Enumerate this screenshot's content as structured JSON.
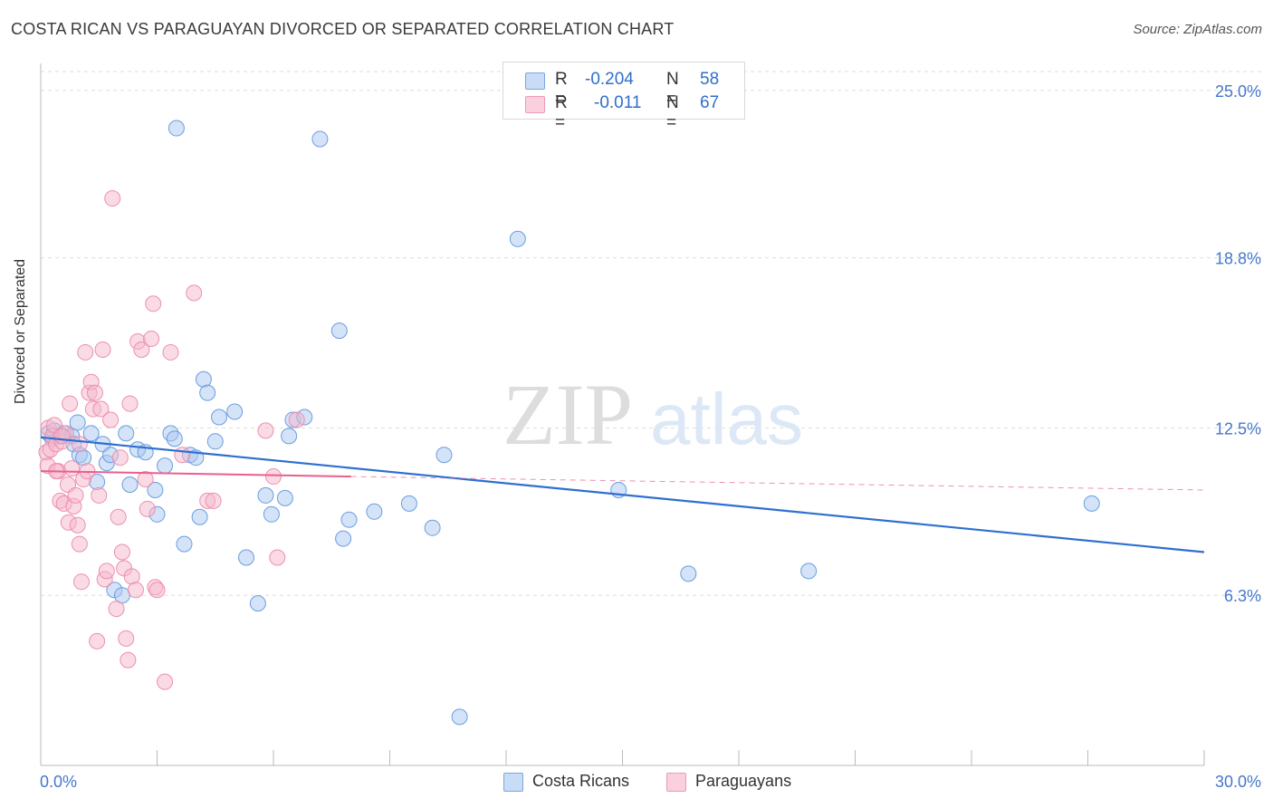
{
  "title": "COSTA RICAN VS PARAGUAYAN DIVORCED OR SEPARATED CORRELATION CHART",
  "source": "Source: ZipAtlas.com",
  "watermark": {
    "zip": "ZIP",
    "atlas": "atlas"
  },
  "legend": {
    "r_label": "R =",
    "n_label": "N =",
    "entries": [
      {
        "r": "-0.204",
        "n": "58",
        "color": "#a9c8f0"
      },
      {
        "r": "-0.011",
        "n": "67",
        "color": "#f5b8cc"
      }
    ]
  },
  "bottom_legend": [
    "Costa Ricans",
    "Paraguayans"
  ],
  "colors": {
    "blue_fill": "#a9c8f0",
    "blue_stroke": "#6a9ee0",
    "blue_line": "#2f6fd0",
    "pink_fill": "#f5b8cc",
    "pink_stroke": "#ec8fae",
    "pink_line": "#e8608e",
    "axis_label": "#4477cc",
    "grid": "#dddddd"
  },
  "chart_data": {
    "type": "scatter",
    "title": "COSTA RICAN VS PARAGUAYAN DIVORCED OR SEPARATED CORRELATION CHART",
    "xlabel": "",
    "ylabel": "Divorced or Separated",
    "xlim": [
      0,
      30
    ],
    "ylim": [
      0,
      26
    ],
    "x_tick_labels": [
      "0.0%",
      "30.0%"
    ],
    "y_ticks": [
      6.3,
      12.5,
      18.8,
      25.0
    ],
    "y_tick_labels": [
      "6.3%",
      "12.5%",
      "18.8%",
      "25.0%"
    ],
    "grid": true,
    "legend_position": "top-center",
    "series": [
      {
        "name": "Costa Ricans",
        "r": -0.204,
        "n": 58,
        "trend": {
          "x": [
            0,
            30
          ],
          "y": [
            12.15,
            7.9
          ]
        },
        "points": [
          [
            0.2,
            12.3
          ],
          [
            0.35,
            12.4
          ],
          [
            0.5,
            12.2
          ],
          [
            0.6,
            12.3
          ],
          [
            0.8,
            12.2
          ],
          [
            0.85,
            11.9
          ],
          [
            0.95,
            12.7
          ],
          [
            1.0,
            11.5
          ],
          [
            1.1,
            11.4
          ],
          [
            1.3,
            12.3
          ],
          [
            1.45,
            10.5
          ],
          [
            1.6,
            11.9
          ],
          [
            1.7,
            11.2
          ],
          [
            1.8,
            11.5
          ],
          [
            2.2,
            12.3
          ],
          [
            2.3,
            10.4
          ],
          [
            2.5,
            11.7
          ],
          [
            2.7,
            11.6
          ],
          [
            2.95,
            10.2
          ],
          [
            3.0,
            9.3
          ],
          [
            3.2,
            11.1
          ],
          [
            3.35,
            12.3
          ],
          [
            3.45,
            12.1
          ],
          [
            3.5,
            23.6
          ],
          [
            3.7,
            8.2
          ],
          [
            3.85,
            11.5
          ],
          [
            4.0,
            11.4
          ],
          [
            4.1,
            9.2
          ],
          [
            4.2,
            14.3
          ],
          [
            4.3,
            13.8
          ],
          [
            4.5,
            12.0
          ],
          [
            4.6,
            12.9
          ],
          [
            5.0,
            13.1
          ],
          [
            5.3,
            7.7
          ],
          [
            5.6,
            6.0
          ],
          [
            5.8,
            10.0
          ],
          [
            5.95,
            9.3
          ],
          [
            6.3,
            9.9
          ],
          [
            6.4,
            12.2
          ],
          [
            6.5,
            12.8
          ],
          [
            6.8,
            12.9
          ],
          [
            7.2,
            23.2
          ],
          [
            7.7,
            16.1
          ],
          [
            7.8,
            8.4
          ],
          [
            7.95,
            9.1
          ],
          [
            8.6,
            9.4
          ],
          [
            9.5,
            9.7
          ],
          [
            10.1,
            8.8
          ],
          [
            10.4,
            11.5
          ],
          [
            10.8,
            1.8
          ],
          [
            12.3,
            19.5
          ],
          [
            14.9,
            10.2
          ],
          [
            16.7,
            7.1
          ],
          [
            19.8,
            7.2
          ],
          [
            27.1,
            9.7
          ],
          [
            1.9,
            6.5
          ],
          [
            2.1,
            6.3
          ],
          [
            0.3,
            12.1
          ]
        ]
      },
      {
        "name": "Paraguayans",
        "r": -0.011,
        "n": 67,
        "trend": {
          "x": [
            0,
            8
          ],
          "y": [
            10.9,
            10.7
          ]
        },
        "trend_dashed": {
          "x": [
            8,
            30
          ],
          "y": [
            10.7,
            10.2
          ]
        },
        "points": [
          [
            0.15,
            11.6
          ],
          [
            0.18,
            11.1
          ],
          [
            0.2,
            12.5
          ],
          [
            0.25,
            11.7
          ],
          [
            0.3,
            12.2
          ],
          [
            0.35,
            12.6
          ],
          [
            0.4,
            11.9
          ],
          [
            0.45,
            10.9
          ],
          [
            0.5,
            9.8
          ],
          [
            0.55,
            12.0
          ],
          [
            0.6,
            9.7
          ],
          [
            0.65,
            12.3
          ],
          [
            0.7,
            10.4
          ],
          [
            0.72,
            9.0
          ],
          [
            0.75,
            13.4
          ],
          [
            0.8,
            11.0
          ],
          [
            0.85,
            9.6
          ],
          [
            0.9,
            10.0
          ],
          [
            0.95,
            8.9
          ],
          [
            1.0,
            8.2
          ],
          [
            1.05,
            6.8
          ],
          [
            1.1,
            10.6
          ],
          [
            1.15,
            15.3
          ],
          [
            1.2,
            10.9
          ],
          [
            1.25,
            13.8
          ],
          [
            1.3,
            14.2
          ],
          [
            1.35,
            13.2
          ],
          [
            1.4,
            13.8
          ],
          [
            1.45,
            4.6
          ],
          [
            1.5,
            10.0
          ],
          [
            1.55,
            13.2
          ],
          [
            1.6,
            15.4
          ],
          [
            1.65,
            6.9
          ],
          [
            1.7,
            7.2
          ],
          [
            1.8,
            12.8
          ],
          [
            1.85,
            21.0
          ],
          [
            1.95,
            5.8
          ],
          [
            2.0,
            9.2
          ],
          [
            2.05,
            11.4
          ],
          [
            2.1,
            7.9
          ],
          [
            2.15,
            7.3
          ],
          [
            2.2,
            4.7
          ],
          [
            2.25,
            3.9
          ],
          [
            2.3,
            13.4
          ],
          [
            2.35,
            7.0
          ],
          [
            2.45,
            6.5
          ],
          [
            2.5,
            15.7
          ],
          [
            2.6,
            15.4
          ],
          [
            2.7,
            10.6
          ],
          [
            2.75,
            9.5
          ],
          [
            2.85,
            15.8
          ],
          [
            2.9,
            17.1
          ],
          [
            2.95,
            6.6
          ],
          [
            3.0,
            6.5
          ],
          [
            3.2,
            3.1
          ],
          [
            3.35,
            15.3
          ],
          [
            3.65,
            11.5
          ],
          [
            3.95,
            17.5
          ],
          [
            4.3,
            9.8
          ],
          [
            4.45,
            9.8
          ],
          [
            5.8,
            12.4
          ],
          [
            6.0,
            10.7
          ],
          [
            6.1,
            7.7
          ],
          [
            6.6,
            12.8
          ],
          [
            0.4,
            10.9
          ],
          [
            1.0,
            11.9
          ],
          [
            0.55,
            12.2
          ]
        ]
      }
    ]
  }
}
